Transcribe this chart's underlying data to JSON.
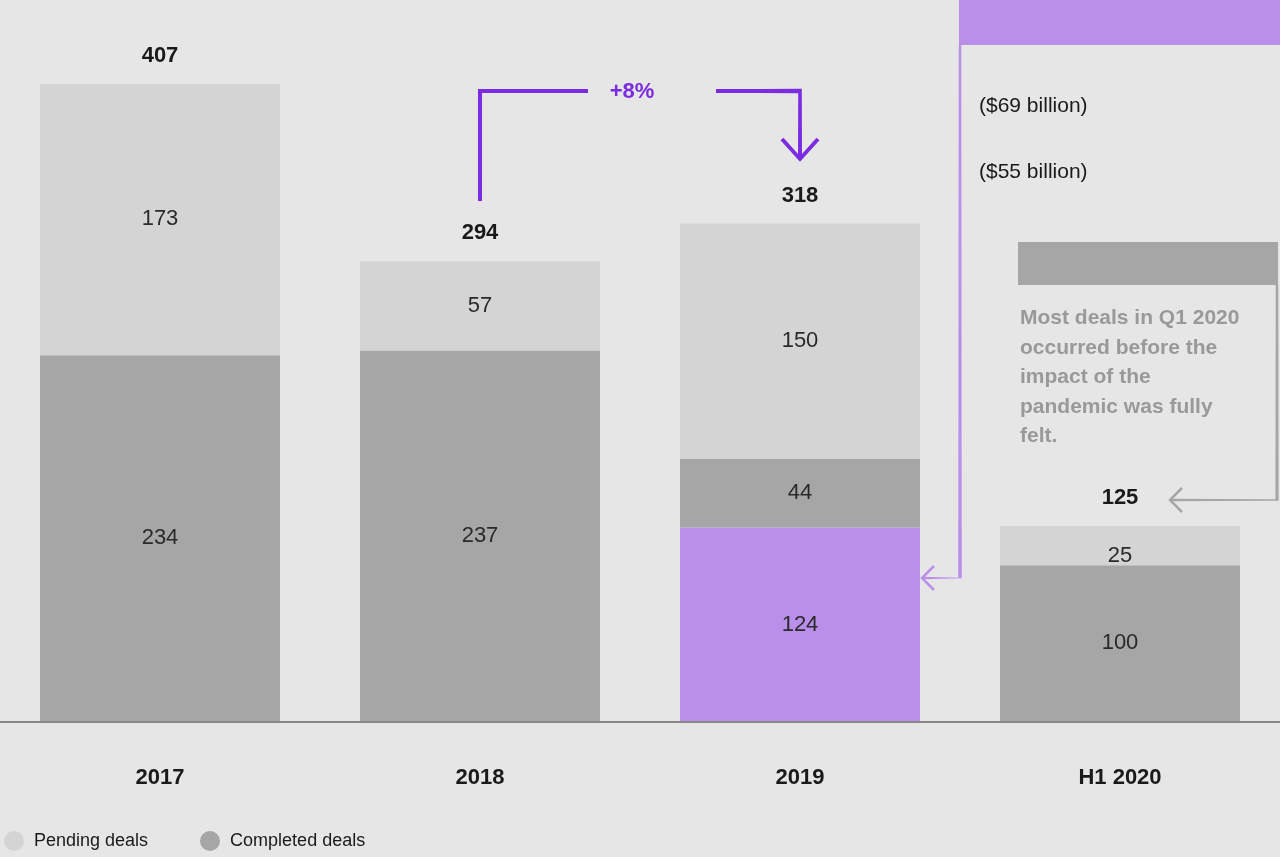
{
  "chart_data": {
    "type": "bar",
    "stacked": true,
    "categories": [
      "2017",
      "2018",
      "2019",
      "H1 2020"
    ],
    "series": [
      {
        "color": "#b98fea",
        "values": [
          null,
          null,
          124,
          null
        ]
      },
      {
        "name": "Completed deals",
        "color": "#a6a6a6",
        "values": [
          234,
          237,
          44,
          100
        ]
      },
      {
        "name": "Pending deals",
        "color": "#d4d4d4",
        "values": [
          173,
          57,
          150,
          25
        ]
      }
    ],
    "totals": [
      "407",
      "294",
      "318",
      "125"
    ],
    "data_labels": true,
    "legend": "bottom left",
    "annotations": [
      "+8%",
      "($69 billion)",
      "($55 billion)",
      "Most deals in Q1 2020 occurred before the impact of the pandemic was fully felt."
    ]
  }
}
